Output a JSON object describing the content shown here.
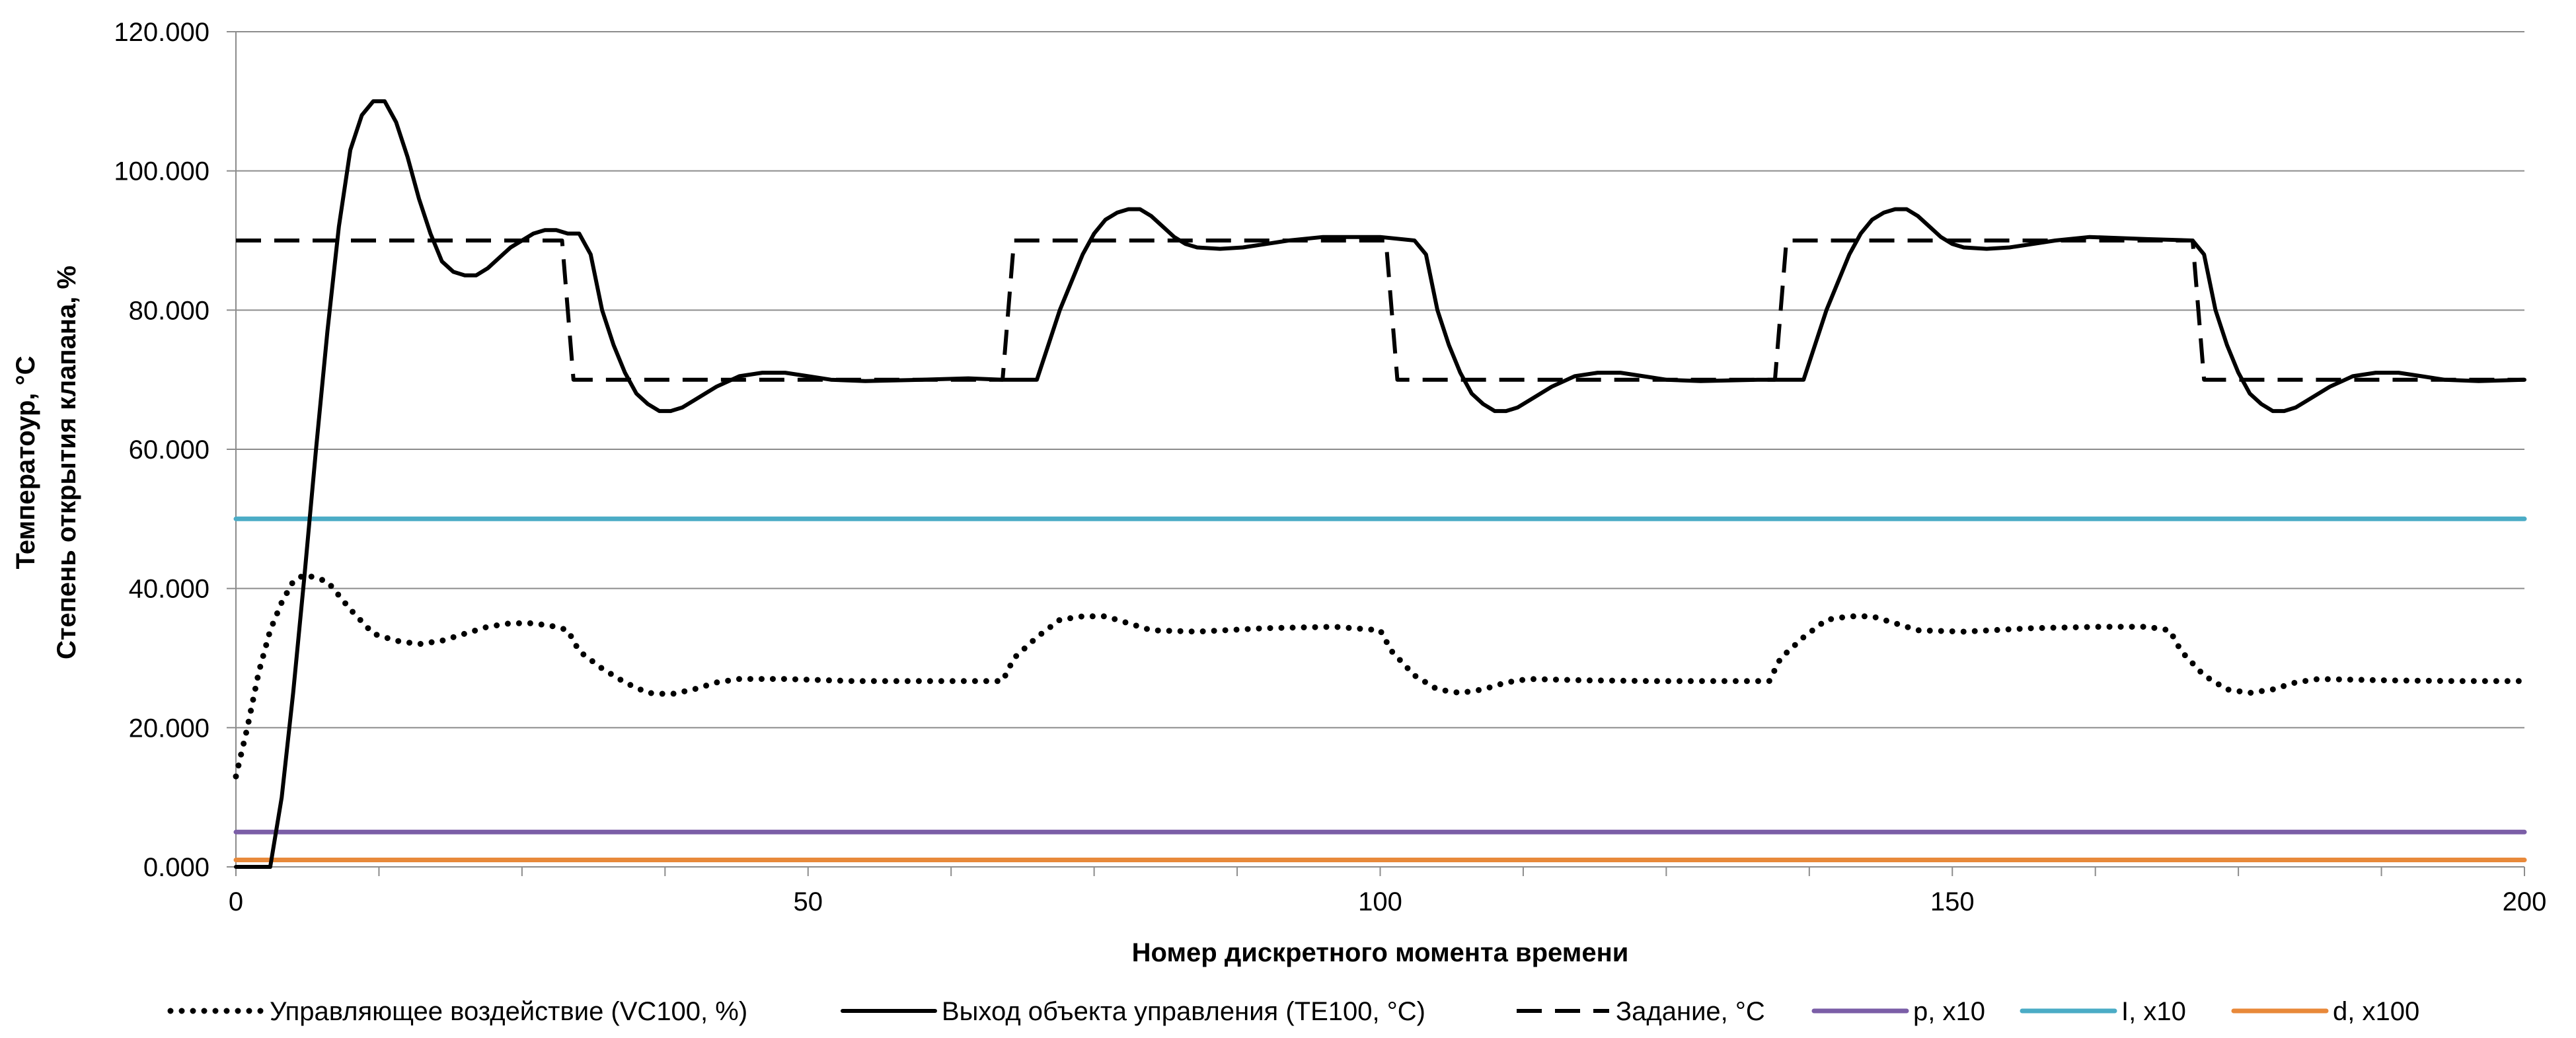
{
  "chart_data": {
    "type": "line",
    "xlabel": "Номер дискретного момента времени",
    "ylabel_lines": [
      "Температоур, °С",
      "Степень открытия клапана, %"
    ],
    "xlim": [
      0,
      200
    ],
    "ylim": [
      0,
      120
    ],
    "x_ticks": [
      0,
      50,
      100,
      150,
      200
    ],
    "x_minor_step": 12.5,
    "y_ticks": [
      0,
      20,
      40,
      60,
      80,
      100,
      120
    ],
    "y_tick_labels": [
      "0.000",
      "20.000",
      "40.000",
      "60.000",
      "80.000",
      "100.000",
      "120.000"
    ],
    "grid": "horizontal",
    "legend_position": "bottom",
    "series": [
      {
        "name": "Управляющее воздействие (VC100, %)",
        "style": "dotted",
        "color": "#000000",
        "points": [
          [
            0,
            13
          ],
          [
            1,
            20
          ],
          [
            2,
            28
          ],
          [
            3,
            34
          ],
          [
            4,
            38
          ],
          [
            5,
            41
          ],
          [
            6,
            42
          ],
          [
            8,
            41
          ],
          [
            10,
            37
          ],
          [
            12,
            33.5
          ],
          [
            14,
            32.5
          ],
          [
            16,
            32
          ],
          [
            18,
            32.5
          ],
          [
            20,
            33.5
          ],
          [
            22,
            34.5
          ],
          [
            24,
            35
          ],
          [
            26,
            35
          ],
          [
            28,
            34.5
          ],
          [
            29,
            34
          ],
          [
            30,
            31
          ],
          [
            32,
            28.5
          ],
          [
            34,
            26.5
          ],
          [
            36,
            25
          ],
          [
            38,
            24.8
          ],
          [
            40,
            25.5
          ],
          [
            42,
            26.5
          ],
          [
            44,
            27
          ],
          [
            48,
            27
          ],
          [
            54,
            26.7
          ],
          [
            60,
            26.7
          ],
          [
            67,
            26.7
          ],
          [
            68,
            30
          ],
          [
            70,
            33
          ],
          [
            72,
            35.5
          ],
          [
            74,
            36
          ],
          [
            76,
            36
          ],
          [
            78,
            35
          ],
          [
            80,
            34
          ],
          [
            84,
            33.8
          ],
          [
            90,
            34.3
          ],
          [
            96,
            34.5
          ],
          [
            100,
            34
          ],
          [
            101,
            31
          ],
          [
            103,
            27.5
          ],
          [
            105,
            25.5
          ],
          [
            107,
            25
          ],
          [
            109,
            25.5
          ],
          [
            111,
            26.5
          ],
          [
            113,
            27
          ],
          [
            118,
            26.8
          ],
          [
            124,
            26.7
          ],
          [
            134,
            26.7
          ],
          [
            135,
            30
          ],
          [
            137,
            33
          ],
          [
            139,
            35.5
          ],
          [
            141,
            36
          ],
          [
            143,
            36
          ],
          [
            145,
            35
          ],
          [
            147,
            34
          ],
          [
            151,
            33.8
          ],
          [
            157,
            34.3
          ],
          [
            163,
            34.5
          ],
          [
            167,
            34.5
          ],
          [
            169,
            34
          ],
          [
            170,
            31
          ],
          [
            172,
            27.5
          ],
          [
            174,
            25.5
          ],
          [
            176,
            25
          ],
          [
            178,
            25.5
          ],
          [
            180,
            26.5
          ],
          [
            182,
            27
          ],
          [
            188,
            26.8
          ],
          [
            194,
            26.7
          ],
          [
            200,
            26.7
          ]
        ]
      },
      {
        "name": "Выход объекта управления (TE100, °С)",
        "style": "solid",
        "color": "#000000",
        "points": [
          [
            0,
            0
          ],
          [
            2,
            0
          ],
          [
            3,
            0
          ],
          [
            4,
            10
          ],
          [
            5,
            25
          ],
          [
            6,
            42
          ],
          [
            7,
            60
          ],
          [
            8,
            77
          ],
          [
            9,
            92
          ],
          [
            10,
            103
          ],
          [
            11,
            108
          ],
          [
            12,
            110
          ],
          [
            13,
            110
          ],
          [
            14,
            107
          ],
          [
            15,
            102
          ],
          [
            16,
            96
          ],
          [
            17,
            91
          ],
          [
            18,
            87
          ],
          [
            19,
            85.5
          ],
          [
            20,
            85
          ],
          [
            21,
            85
          ],
          [
            22,
            86
          ],
          [
            23,
            87.5
          ],
          [
            24,
            89
          ],
          [
            25,
            90
          ],
          [
            26,
            91
          ],
          [
            27,
            91.5
          ],
          [
            28,
            91.5
          ],
          [
            29,
            91
          ],
          [
            30,
            91
          ],
          [
            31,
            88
          ],
          [
            32,
            80
          ],
          [
            33,
            75
          ],
          [
            34,
            71
          ],
          [
            35,
            68
          ],
          [
            36,
            66.5
          ],
          [
            37,
            65.5
          ],
          [
            38,
            65.5
          ],
          [
            39,
            66
          ],
          [
            40,
            67
          ],
          [
            42,
            69
          ],
          [
            44,
            70.5
          ],
          [
            46,
            71
          ],
          [
            48,
            71
          ],
          [
            50,
            70.5
          ],
          [
            52,
            70
          ],
          [
            55,
            69.8
          ],
          [
            60,
            70
          ],
          [
            64,
            70.2
          ],
          [
            67,
            70
          ],
          [
            70,
            70
          ],
          [
            71,
            75
          ],
          [
            72,
            80
          ],
          [
            73,
            84
          ],
          [
            74,
            88
          ],
          [
            75,
            91
          ],
          [
            76,
            93
          ],
          [
            77,
            94
          ],
          [
            78,
            94.5
          ],
          [
            79,
            94.5
          ],
          [
            80,
            93.5
          ],
          [
            81,
            92
          ],
          [
            82,
            90.5
          ],
          [
            83,
            89.5
          ],
          [
            84,
            89
          ],
          [
            86,
            88.8
          ],
          [
            88,
            89
          ],
          [
            90,
            89.5
          ],
          [
            92,
            90
          ],
          [
            95,
            90.5
          ],
          [
            100,
            90.5
          ],
          [
            103,
            90
          ],
          [
            104,
            88
          ],
          [
            105,
            80
          ],
          [
            106,
            75
          ],
          [
            107,
            71
          ],
          [
            108,
            68
          ],
          [
            109,
            66.5
          ],
          [
            110,
            65.5
          ],
          [
            111,
            65.5
          ],
          [
            112,
            66
          ],
          [
            113,
            67
          ],
          [
            115,
            69
          ],
          [
            117,
            70.5
          ],
          [
            119,
            71
          ],
          [
            121,
            71
          ],
          [
            123,
            70.5
          ],
          [
            125,
            70
          ],
          [
            128,
            69.8
          ],
          [
            133,
            70
          ],
          [
            137,
            70
          ],
          [
            138,
            75
          ],
          [
            139,
            80
          ],
          [
            140,
            84
          ],
          [
            141,
            88
          ],
          [
            142,
            91
          ],
          [
            143,
            93
          ],
          [
            144,
            94
          ],
          [
            145,
            94.5
          ],
          [
            146,
            94.5
          ],
          [
            147,
            93.5
          ],
          [
            148,
            92
          ],
          [
            149,
            90.5
          ],
          [
            150,
            89.5
          ],
          [
            151,
            89
          ],
          [
            153,
            88.8
          ],
          [
            155,
            89
          ],
          [
            157,
            89.5
          ],
          [
            159,
            90
          ],
          [
            162,
            90.5
          ],
          [
            167,
            90.2
          ],
          [
            171,
            90
          ],
          [
            172,
            88
          ],
          [
            173,
            80
          ],
          [
            174,
            75
          ],
          [
            175,
            71
          ],
          [
            176,
            68
          ],
          [
            177,
            66.5
          ],
          [
            178,
            65.5
          ],
          [
            179,
            65.5
          ],
          [
            180,
            66
          ],
          [
            181,
            67
          ],
          [
            183,
            69
          ],
          [
            185,
            70.5
          ],
          [
            187,
            71
          ],
          [
            189,
            71
          ],
          [
            191,
            70.5
          ],
          [
            193,
            70
          ],
          [
            196,
            69.8
          ],
          [
            200,
            70
          ]
        ]
      },
      {
        "name": "Задание, °С",
        "style": "dashed",
        "color": "#000000",
        "points": [
          [
            0,
            90
          ],
          [
            28.5,
            90
          ],
          [
            29.5,
            70
          ],
          [
            67,
            70
          ],
          [
            68,
            90
          ],
          [
            100.5,
            90
          ],
          [
            101.5,
            70
          ],
          [
            134.5,
            70
          ],
          [
            135.5,
            90
          ],
          [
            171,
            90
          ],
          [
            172,
            70
          ],
          [
            200,
            70
          ]
        ]
      },
      {
        "name": "p, x10",
        "style": "solid",
        "color": "#7b5ea7",
        "points": [
          [
            0,
            5
          ],
          [
            200,
            5
          ]
        ]
      },
      {
        "name": "I, x10",
        "style": "solid",
        "color": "#4bacc6",
        "points": [
          [
            0,
            50
          ],
          [
            200,
            50
          ]
        ]
      },
      {
        "name": "d, x100",
        "style": "solid",
        "color": "#e8893a",
        "points": [
          [
            0,
            1
          ],
          [
            200,
            1
          ]
        ]
      }
    ]
  }
}
